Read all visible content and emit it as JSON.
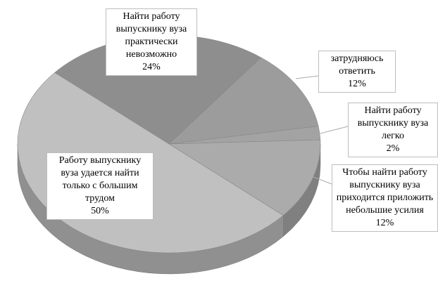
{
  "chart_data": {
    "type": "pie",
    "categories": [
      "Найти работу выпускнику вуза практически невозможно",
      "затрудняюсь ответить",
      "Найти работу выпускнику вуза легко",
      "Чтобы найти работу выпускнику вуза приходится приложить небольшие усилия",
      "Работу выпускнику вуза удается найти только с большим трудом"
    ],
    "values": [
      24,
      12,
      2,
      12,
      50
    ],
    "value_labels": [
      "24%",
      "12%",
      "2%",
      "12%",
      "50%"
    ],
    "colors": [
      "#8e8e8e",
      "#9c9c9c",
      "#a3a3a3",
      "#ababab",
      "#c0c0c0"
    ]
  }
}
